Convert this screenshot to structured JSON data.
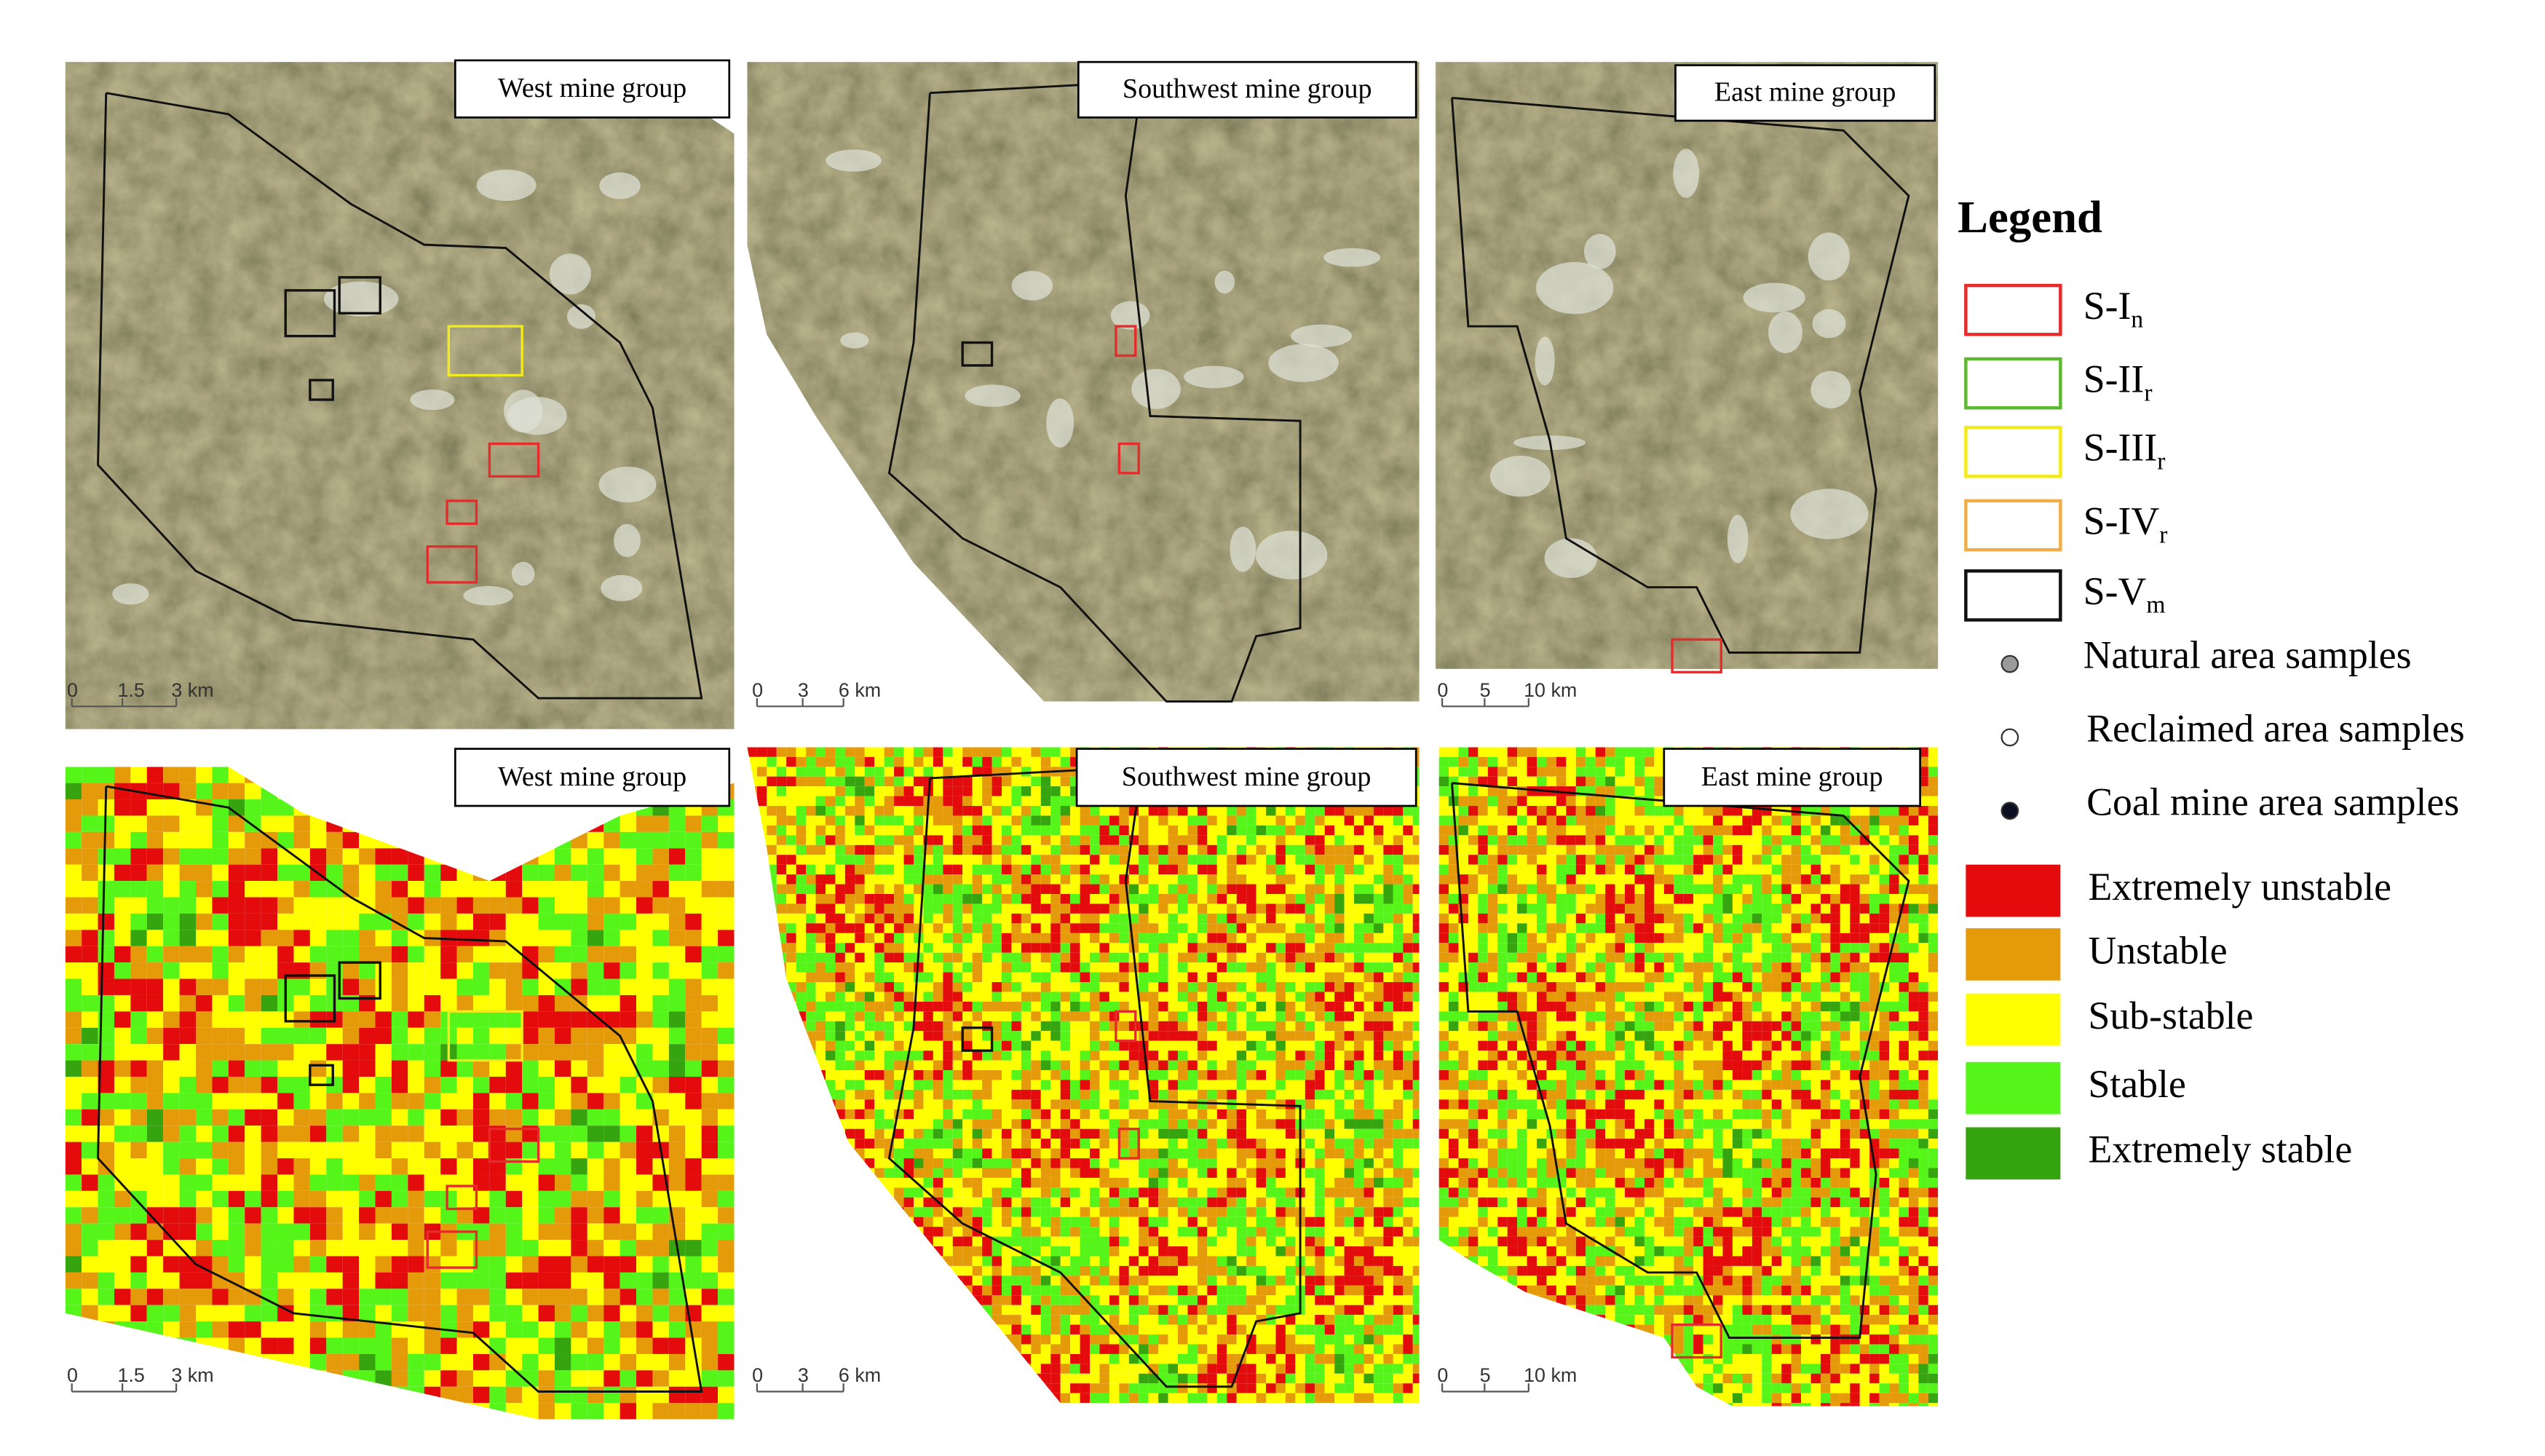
{
  "panels": [
    {
      "title": "West mine group",
      "scale": [
        "0",
        "1.5",
        "3 km"
      ]
    },
    {
      "title": "Southwest mine group",
      "scale": [
        "0",
        "3",
        "6 km"
      ]
    },
    {
      "title": "East mine group",
      "scale": [
        "0",
        "5",
        "10 km"
      ]
    },
    {
      "title": "West mine group",
      "scale": [
        "0",
        "1.5",
        "3 km"
      ]
    },
    {
      "title": "Southwest mine group",
      "scale": [
        "0",
        "3",
        "6 km"
      ]
    },
    {
      "title": "East mine group",
      "scale": [
        "0",
        "5",
        "10 km"
      ]
    }
  ],
  "legend": {
    "title": "Legend",
    "boundaries": [
      {
        "label": "S-I",
        "sub": "n",
        "color": "#e52b2b"
      },
      {
        "label": "S-II",
        "sub": "r",
        "color": "#5fb832"
      },
      {
        "label": "S-III",
        "sub": "r",
        "color": "#f2ea1c"
      },
      {
        "label": "S-IV",
        "sub": "r",
        "color": "#efae4a"
      },
      {
        "label": "S-V",
        "sub": "m",
        "color": "#111111"
      }
    ],
    "samples": [
      {
        "label": "Natural area samples",
        "color": "#9a9a9a"
      },
      {
        "label": "Reclaimed area samples",
        "color": "#ffffff"
      },
      {
        "label": "Coal mine area samples",
        "color": "#0b1020"
      }
    ],
    "classes": [
      {
        "label": "Extremely unstable",
        "color": "#e30b0b"
      },
      {
        "label": "Unstable",
        "color": "#e59a0a"
      },
      {
        "label": "Sub-stable",
        "color": "#ffff00"
      },
      {
        "label": "Stable",
        "color": "#55f51a"
      },
      {
        "label": "Extremely stable",
        "color": "#36a40e"
      }
    ]
  }
}
